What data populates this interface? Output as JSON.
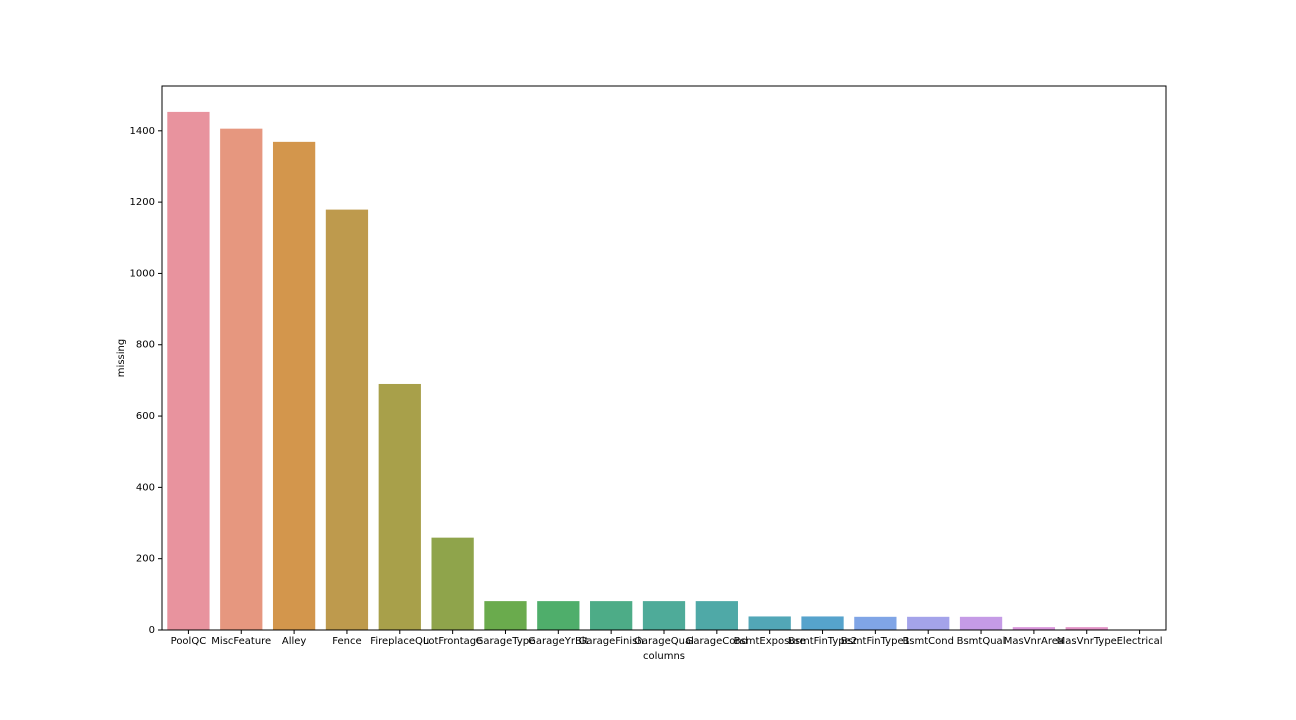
{
  "chart_data": {
    "type": "bar",
    "x_label": "columns",
    "y_label": "missing",
    "categories": [
      "PoolQC",
      "MiscFeature",
      "Alley",
      "Fence",
      "FireplaceQu",
      "LotFrontage",
      "GarageType",
      "GarageYrBlt",
      "GarageFinish",
      "GarageQual",
      "GarageCond",
      "BsmtExposure",
      "BsmtFinType2",
      "BsmtFinType1",
      "BsmtCond",
      "BsmtQual",
      "MasVnrArea",
      "MasVnrType",
      "Electrical"
    ],
    "values": [
      1453,
      1406,
      1369,
      1179,
      690,
      259,
      81,
      81,
      81,
      81,
      81,
      38,
      38,
      37,
      37,
      37,
      8,
      8,
      1
    ],
    "colors": [
      "#e8939e",
      "#e6977f",
      "#d3964c",
      "#be9a4d",
      "#a8a04a",
      "#8fa44b",
      "#6aab4d",
      "#4fae6b",
      "#4dac87",
      "#4eab99",
      "#4fa9a7",
      "#52a7b7",
      "#56a3cc",
      "#80a5e6",
      "#a4a3ea",
      "#c59be6",
      "#d995da",
      "#e191c5",
      "#e693b1"
    ],
    "ylim": [
      0,
      1525.65
    ],
    "yticks": [
      0,
      200,
      400,
      600,
      800,
      1000,
      1200,
      1400
    ]
  }
}
